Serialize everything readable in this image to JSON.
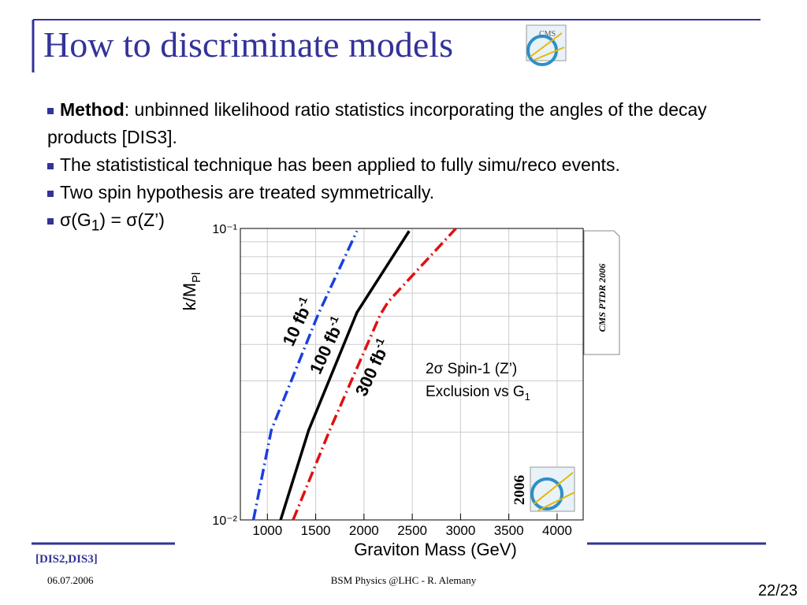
{
  "slide": {
    "title": "How to discriminate models",
    "bullets": [
      {
        "bold": "Method",
        "text": ": unbinned likelihood ratio statistics incorporating the angles of the decay products [DIS3]."
      },
      {
        "text": "The statististical technique has been applied to fully simu/reco events."
      },
      {
        "text": "Two spin hypothesis are treated symmetrically."
      },
      {
        "parts": [
          "σ(G",
          "1",
          ") = σ(Z’)"
        ]
      }
    ],
    "reference": "[DIS2,DIS3]",
    "date": "06.07.2006",
    "footer": "BSM Physics @LHC -  R. Alemany",
    "page": "22/23"
  },
  "chart_data": {
    "type": "line",
    "x_label": "Graviton Mass (GeV)",
    "y_label": {
      "text": "k/M",
      "sub": "Pl"
    },
    "log_y": true,
    "xlim": [
      720,
      4270
    ],
    "ylim": [
      0.01,
      0.1
    ],
    "xticks": [
      1000,
      1500,
      2000,
      2500,
      3000,
      3500,
      4000
    ],
    "yticks": [
      {
        "value": 0.01,
        "label": "10⁻²"
      },
      {
        "value": 0.1,
        "label": "10⁻¹"
      }
    ],
    "y_minor_grid": [
      0.02,
      0.03,
      0.04,
      0.05,
      0.06,
      0.07,
      0.08,
      0.09
    ],
    "grid": true,
    "series": [
      {
        "name": {
          "text": "10 fb",
          "sup": "-1"
        },
        "color": "#1a3fe0",
        "dash": "14 5 2 5",
        "x": [
          855,
          1040,
          1080,
          1524,
          1927
        ],
        "values": [
          0.01,
          0.0203,
          0.0219,
          0.0506,
          0.098
        ]
      },
      {
        "name": {
          "text": "100 fb",
          "sup": "-1"
        },
        "color": "#000000",
        "dash": "none",
        "x": [
          1137,
          1427,
          1927,
          2468
        ],
        "values": [
          0.01,
          0.0203,
          0.0515,
          0.098
        ]
      },
      {
        "name": {
          "text": "300 fb",
          "sup": "-1"
        },
        "color": "#e01010",
        "dash": "14 5 2 5",
        "x": [
          1266,
          1645,
          2169,
          2250,
          2952
        ],
        "values": [
          0.01,
          0.0203,
          0.0506,
          0.056,
          0.1
        ]
      }
    ],
    "annotation": {
      "line1": "2σ Spin-1 (Z’)",
      "line2": "Exclusion vs G",
      "line2_sub": "1"
    },
    "note": "CMS PTDR 2006",
    "year": "2006"
  }
}
